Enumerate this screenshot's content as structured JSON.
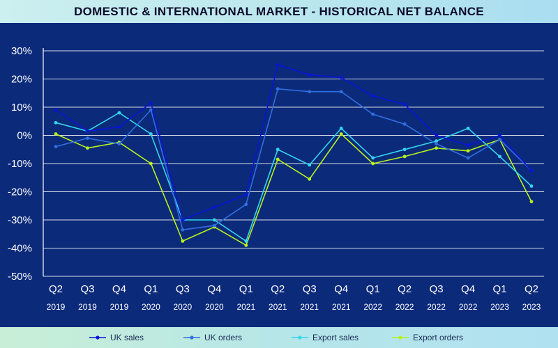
{
  "header": {
    "title": "DOMESTIC & INTERNATIONAL MARKET - HISTORICAL NET BALANCE"
  },
  "colors": {
    "background": "#0c2a7a",
    "uk_sales": "#0a14d8",
    "uk_orders": "#2f6fe0",
    "export_sales": "#33d6ee",
    "export_orders": "#b6f21e",
    "grid": "#ffffff"
  },
  "chart_data": {
    "type": "line",
    "title": "DOMESTIC & INTERNATIONAL MARKET - HISTORICAL NET BALANCE",
    "xlabel": "",
    "ylabel": "",
    "ylim": [
      -50,
      30
    ],
    "yticks": [
      30,
      20,
      10,
      0,
      -10,
      -20,
      -30,
      -40,
      -50
    ],
    "ytick_labels": [
      "30%",
      "20%",
      "10%",
      "0%",
      "-10%",
      "-20%",
      "-30%",
      "-40%",
      "-50%"
    ],
    "grid": true,
    "legend_position": "bottom",
    "categories": [
      {
        "q": "Q2",
        "y": "2019"
      },
      {
        "q": "Q3",
        "y": "2019"
      },
      {
        "q": "Q4",
        "y": "2019"
      },
      {
        "q": "Q1",
        "y": "2020"
      },
      {
        "q": "Q3",
        "y": "2020"
      },
      {
        "q": "Q4",
        "y": "2020"
      },
      {
        "q": "Q1",
        "y": "2021"
      },
      {
        "q": "Q2",
        "y": "2021"
      },
      {
        "q": "Q3",
        "y": "2021"
      },
      {
        "q": "Q4",
        "y": "2021"
      },
      {
        "q": "Q1",
        "y": "2022"
      },
      {
        "q": "Q2",
        "y": "2022"
      },
      {
        "q": "Q3",
        "y": "2022"
      },
      {
        "q": "Q4",
        "y": "2022"
      },
      {
        "q": "Q1",
        "y": "2023"
      },
      {
        "q": "Q2",
        "y": "2023"
      }
    ],
    "series": [
      {
        "name": "UK sales",
        "color": "#0a14d8",
        "values": [
          9,
          1.5,
          3,
          11.5,
          -30,
          -25.5,
          -21,
          25,
          21.5,
          20.5,
          14,
          11,
          0,
          -3.5,
          0,
          -12.5
        ]
      },
      {
        "name": "UK orders",
        "color": "#2f6fe0",
        "values": [
          -4,
          -1,
          -3,
          9,
          -33.5,
          -32,
          -24.5,
          16.5,
          15.5,
          15.5,
          7.5,
          4,
          -3,
          -8,
          -1.5,
          -12.5
        ]
      },
      {
        "name": "Export sales",
        "color": "#33d6ee",
        "values": [
          4.5,
          1.5,
          8,
          0.5,
          -30,
          -30,
          -37.5,
          -5,
          -10.5,
          2.5,
          -8,
          -5,
          -2,
          2.5,
          -7.5,
          -18
        ]
      },
      {
        "name": "Export orders",
        "color": "#b6f21e",
        "values": [
          0.5,
          -4.5,
          -2.5,
          -10,
          -37.5,
          -32.5,
          -39,
          -8.5,
          -15.5,
          0.5,
          -10,
          -7.5,
          -4.5,
          -5.5,
          -1.5,
          -23.5
        ]
      }
    ]
  }
}
